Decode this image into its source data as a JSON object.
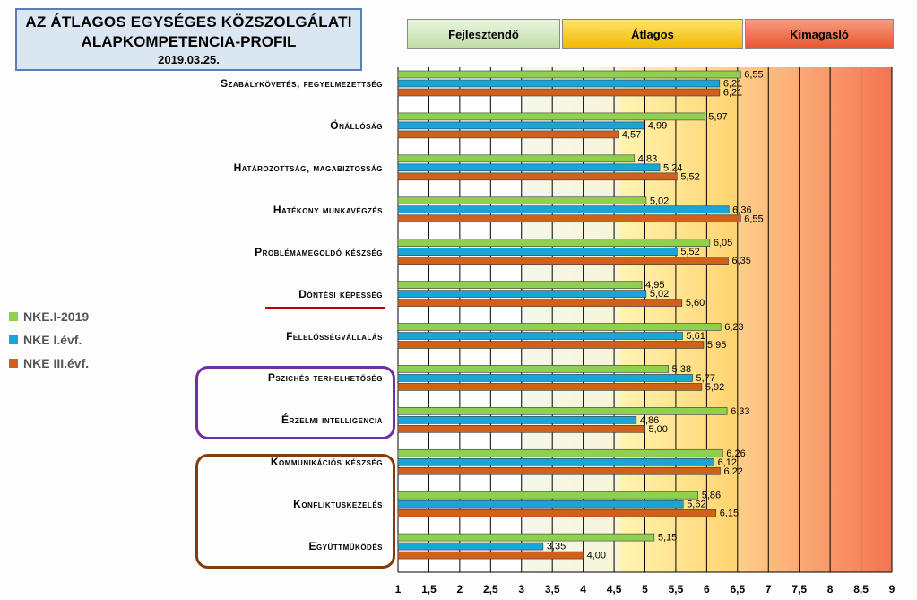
{
  "title": {
    "line1": "AZ ÁTLAGOS EGYSÉGES KÖZSZOLGÁLATI",
    "line2": "ALAPKOMPETENCIA-PROFIL",
    "date": "2019.03.25."
  },
  "zones": [
    {
      "label": "Fejlesztendő",
      "from": 3.0,
      "to": 4.6,
      "color": "#d9edc8"
    },
    {
      "label": "Átlagos",
      "from": 4.6,
      "to": 6.5,
      "color": "#ffcc00"
    },
    {
      "label": "Kimagasló",
      "from": 6.5,
      "to": 9.2,
      "color": "#f26d4b"
    }
  ],
  "legend": [
    {
      "label": "NKE.I-2019",
      "color": "#8fd14f"
    },
    {
      "label": "NKE I.évf.",
      "color": "#1aa5d8"
    },
    {
      "label": "NKE III.évf.",
      "color": "#d0601a"
    }
  ],
  "chart_data": {
    "type": "bar",
    "orientation": "horizontal",
    "xlim": [
      1,
      9
    ],
    "xticks": [
      "1",
      "1,5",
      "2",
      "2,5",
      "3",
      "3,5",
      "4",
      "4,5",
      "5",
      "5,5",
      "6",
      "6,5",
      "7",
      "7,5",
      "8",
      "8,5",
      "9"
    ],
    "categories": [
      "Szabálykövetés, fegyelmezettség",
      "Önállóság",
      "Határozottság, magabiztosság",
      "Hatékony munkavégzés",
      "Problémamegoldó készség",
      "Döntési képesség",
      "Felelősségvállalás",
      "Pszichés terhelhetőség",
      "Érzelmi intelligencia",
      "Kommunikációs készség",
      "Konfliktuskezelés",
      "Együttműködés"
    ],
    "series": [
      {
        "name": "NKE.I-2019",
        "color": "#8fd14f",
        "values": [
          6.55,
          5.97,
          4.83,
          5.02,
          6.05,
          4.95,
          6.23,
          5.38,
          6.33,
          6.26,
          5.86,
          5.15
        ],
        "labels": [
          "6,55",
          "5,97",
          "4,83",
          "5,02",
          "6,05",
          "4,95",
          "6,23",
          "5,38",
          "6,33",
          "6,26",
          "5,86",
          "5,15"
        ]
      },
      {
        "name": "NKE I.évf.",
        "color": "#1aa5d8",
        "values": [
          6.21,
          4.99,
          5.24,
          6.36,
          5.52,
          5.02,
          5.61,
          5.77,
          4.86,
          6.12,
          5.62,
          3.35
        ],
        "labels": [
          "6,21",
          "4,99",
          "5,24",
          "6,36",
          "5,52",
          "5,02",
          "5,61",
          "5,77",
          "4,86",
          "6,12",
          "5,62",
          "3,35"
        ]
      },
      {
        "name": "NKE III.évf.",
        "color": "#d0601a",
        "values": [
          6.21,
          4.57,
          5.52,
          6.55,
          6.35,
          5.6,
          5.95,
          5.92,
          5.0,
          6.22,
          6.15,
          4.0
        ],
        "labels": [
          "6,21",
          "4,57",
          "5,52",
          "6,55",
          "6,35",
          "5,60",
          "5,95",
          "5,92",
          "5,00",
          "6,22",
          "6,15",
          "4,00"
        ]
      }
    ],
    "grid": true,
    "legend_position": "left"
  }
}
